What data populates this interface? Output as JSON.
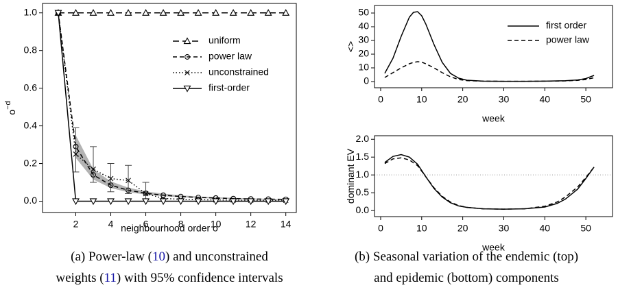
{
  "chart_data": [
    {
      "type": "line",
      "x_label": "neighbourhood order o",
      "y_label": "o",
      "y_label_sup": "−d",
      "x": [
        1,
        2,
        3,
        4,
        5,
        6,
        7,
        8,
        9,
        10,
        11,
        12,
        13,
        14
      ],
      "xlim": [
        0.1,
        14.6
      ],
      "ylim": [
        -0.06,
        1.05
      ],
      "xticks": [
        2,
        4,
        6,
        8,
        10,
        12,
        14
      ],
      "yticks": [
        {
          "value": 0,
          "label": "0.0"
        },
        {
          "value": 0.2,
          "label": "0.2"
        },
        {
          "value": 0.4,
          "label": "0.4"
        },
        {
          "value": 0.6,
          "label": "0.6"
        },
        {
          "value": 0.8,
          "label": "0.8"
        },
        {
          "value": 1,
          "label": "1.0"
        }
      ],
      "ci_lower": [
        null,
        0.23,
        0.115,
        0.07,
        0.048,
        0.035,
        0.027,
        0.021,
        0.017,
        0.014,
        0.012,
        0.01,
        0.009,
        0.008
      ],
      "ci_upper": [
        null,
        0.35,
        0.17,
        0.105,
        0.072,
        0.052,
        0.04,
        0.031,
        0.025,
        0.021,
        0.018,
        0.015,
        0.013,
        0.012
      ],
      "ci_color": "#b3b3b3",
      "series": [
        {
          "name": "uniform",
          "color": "#000000",
          "marker": "triangle-up",
          "linestyle": "longdash",
          "values": [
            1,
            1,
            1,
            1,
            1,
            1,
            1,
            1,
            1,
            1,
            1,
            1,
            1,
            1
          ]
        },
        {
          "name": "power law",
          "color": "#000000",
          "marker": "circle",
          "linestyle": "dashed",
          "values": [
            1,
            0.29,
            0.14,
            0.085,
            0.058,
            0.042,
            0.032,
            0.025,
            0.02,
            0.017,
            0.014,
            0.012,
            0.011,
            0.01
          ]
        },
        {
          "name": "unconstrained",
          "color": "#000000",
          "marker": "cross",
          "linestyle": "dotted",
          "values": [
            1,
            0.25,
            0.17,
            0.12,
            0.11,
            0.04,
            0.015,
            0.01,
            0.008,
            0.007,
            0.006,
            0.005,
            0.005,
            0.005
          ],
          "err_lower": [
            null,
            0.155,
            0.1,
            0.05,
            0.04,
            0.01,
            null,
            null,
            null,
            null,
            null,
            null,
            null,
            null
          ],
          "err_upper": [
            null,
            0.39,
            0.29,
            0.2,
            0.19,
            0.1,
            null,
            null,
            null,
            null,
            null,
            null,
            null,
            null
          ]
        },
        {
          "name": "first-order",
          "color": "#000000",
          "marker": "triangle-down",
          "linestyle": "solid",
          "values": [
            1,
            0,
            0,
            0,
            0,
            0,
            0,
            0,
            0,
            0,
            0,
            0,
            0,
            0
          ]
        }
      ]
    },
    {
      "type": "line",
      "x_label": "week",
      "y_label": "<>",
      "x": [
        1,
        3,
        5,
        7,
        8,
        9,
        10,
        11,
        13,
        15,
        17,
        19,
        21,
        25,
        30,
        35,
        40,
        45,
        48,
        50,
        52
      ],
      "xlim": [
        -1.5,
        56.5
      ],
      "ylim": [
        -4.5,
        55.5
      ],
      "xticks": [
        0,
        10,
        20,
        30,
        40,
        50
      ],
      "yticks": [
        0,
        10,
        20,
        30,
        40,
        50
      ],
      "series": [
        {
          "name": "first order",
          "color": "#000000",
          "linestyle": "solid",
          "values": [
            6,
            17,
            33,
            47,
            50.5,
            51,
            48,
            42,
            27,
            14,
            6,
            2.5,
            1,
            0.3,
            0.2,
            0.2,
            0.3,
            0.6,
            1.2,
            2.2,
            4.5
          ]
        },
        {
          "name": "power law",
          "color": "#000000",
          "linestyle": "dashed",
          "values": [
            3,
            6.5,
            10,
            13,
            14,
            14.5,
            14.2,
            13,
            10,
            6.5,
            3.5,
            1.5,
            0.7,
            0.3,
            0.2,
            0.2,
            0.3,
            0.5,
            0.9,
            1.5,
            2.8
          ]
        }
      ]
    },
    {
      "type": "line",
      "x_label": "week",
      "y_label": "dominant EV",
      "x": [
        1,
        3,
        5,
        7,
        9,
        11,
        13,
        15,
        17,
        19,
        21,
        25,
        30,
        35,
        40,
        43,
        45,
        48,
        50,
        52
      ],
      "xlim": [
        -1.5,
        56.5
      ],
      "ylim": [
        -0.17,
        2.1
      ],
      "xticks": [
        0,
        10,
        20,
        30,
        40,
        50
      ],
      "yticks": [
        {
          "value": 0,
          "label": "0.0"
        },
        {
          "value": 0.5,
          "label": "0.5"
        },
        {
          "value": 1,
          "label": "1.0"
        },
        {
          "value": 1.5,
          "label": "1.5"
        },
        {
          "value": 2,
          "label": "2.0"
        }
      ],
      "hline": 1,
      "series": [
        {
          "name": "first order",
          "color": "#000000",
          "linestyle": "solid",
          "values": [
            1.35,
            1.52,
            1.57,
            1.5,
            1.3,
            0.95,
            0.62,
            0.38,
            0.22,
            0.13,
            0.09,
            0.05,
            0.04,
            0.05,
            0.1,
            0.2,
            0.32,
            0.6,
            0.9,
            1.22
          ]
        },
        {
          "name": "power law",
          "color": "#000000",
          "linestyle": "dashed",
          "values": [
            1.32,
            1.45,
            1.48,
            1.42,
            1.26,
            0.95,
            0.64,
            0.4,
            0.24,
            0.14,
            0.09,
            0.05,
            0.04,
            0.05,
            0.12,
            0.24,
            0.38,
            0.66,
            0.93,
            1.22
          ]
        }
      ]
    }
  ],
  "captions": [
    {
      "lines": [
        [
          {
            "text": "(a) Power-law ("
          },
          {
            "text": "10",
            "ref": true
          },
          {
            "text": ") and unconstrained"
          }
        ],
        [
          {
            "text": "weights ("
          },
          {
            "text": "11",
            "ref": true
          },
          {
            "text": ") with 95% confidence intervals"
          }
        ]
      ]
    },
    {
      "lines": [
        [
          {
            "text": "(b) Seasonal variation of the endemic (top)"
          }
        ],
        [
          {
            "text": "and epidemic (bottom) components"
          }
        ]
      ]
    }
  ]
}
